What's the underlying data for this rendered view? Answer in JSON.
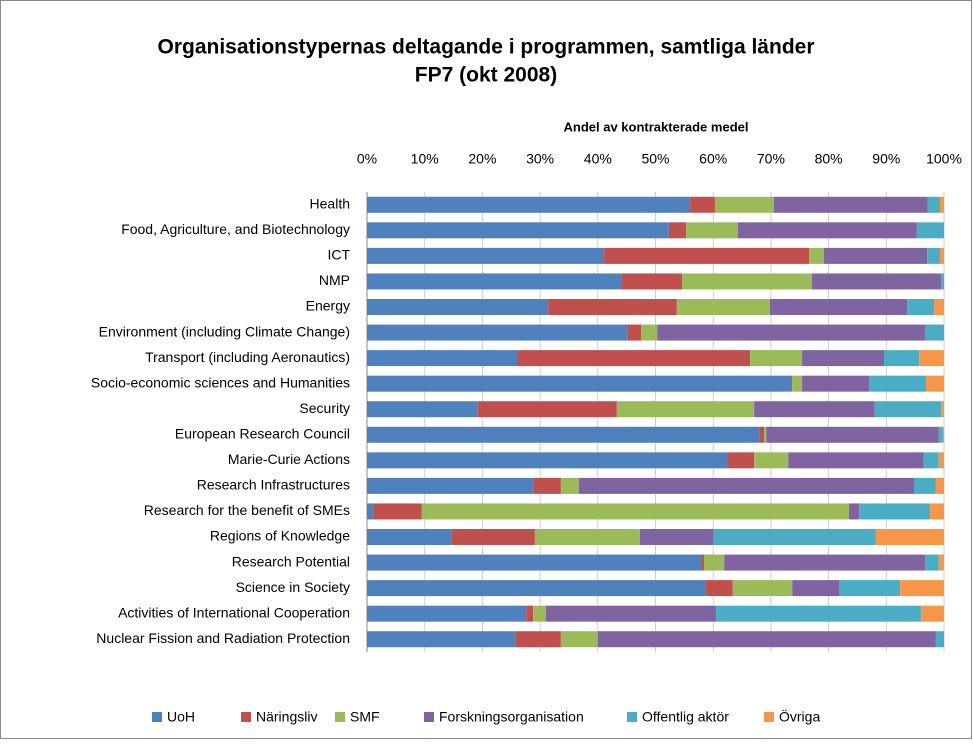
{
  "chart_data": {
    "type": "stacked-bar-horizontal",
    "title_lines": [
      "Organisationstypernas deltagande i programmen, samtliga länder",
      "FP7 (okt 2008)"
    ],
    "x_label": "Andel av kontrakterade medel",
    "categories": [
      "Health",
      "Food, Agriculture, and Biotechnology",
      "ICT",
      "NMP",
      "Energy",
      "Environment (including Climate Change)",
      "Transport (including Aeronautics)",
      "Socio-economic sciences and Humanities",
      "Security",
      "European Research Council",
      "Marie-Curie Actions",
      "Research Infrastructures",
      "Research for the benefit of SMEs",
      "Regions of Knowledge",
      "Research Potential",
      "Science in Society",
      "Activities of International Cooperation",
      "Nuclear Fission and Radiation Protection"
    ],
    "series": [
      {
        "name": "UoH",
        "color": "#4f81bd",
        "values": [
          56,
          52.3,
          41.1,
          44.2,
          31.4,
          45.2,
          26,
          73.5,
          19.2,
          68.1,
          62.4,
          28.8,
          1.2,
          14.6,
          57.9,
          58.6,
          27.6,
          25.8
        ]
      },
      {
        "name": "Näringsliv",
        "color": "#c0504d",
        "values": [
          4.3,
          3,
          35.5,
          10.4,
          22.3,
          2.3,
          40.4,
          0.2,
          24.1,
          0.7,
          4.7,
          4.8,
          8.3,
          14.5,
          0.5,
          4.8,
          1.2,
          7.8
        ]
      },
      {
        "name": "SMF",
        "color": "#9bbb59",
        "values": [
          10.2,
          9,
          2.6,
          22.5,
          16.1,
          2.8,
          9,
          1.7,
          23.8,
          0.4,
          5.9,
          3.1,
          74,
          18.2,
          3.5,
          10.3,
          2.2,
          6.4
        ]
      },
      {
        "name": "Forskningsorganisation",
        "color": "#8064a2",
        "values": [
          26.7,
          31,
          17.9,
          22.4,
          23.8,
          46.4,
          14.2,
          11.6,
          20.9,
          29.9,
          23.5,
          58.1,
          1.8,
          12.8,
          34.8,
          8.1,
          29.5,
          58.6
        ]
      },
      {
        "name": "Offentlig aktör",
        "color": "#4bacc6",
        "values": [
          2.1,
          4.7,
          2.2,
          0.5,
          4.7,
          3.3,
          6.1,
          9.9,
          11.5,
          0.7,
          2.6,
          3.8,
          12.3,
          28.1,
          2.4,
          10.6,
          35.5,
          1.4
        ]
      },
      {
        "name": "Övriga",
        "color": "#f79646",
        "values": [
          0.7,
          0,
          0.7,
          0,
          1.7,
          0,
          4.3,
          3.1,
          0.5,
          0.2,
          0.9,
          1.4,
          2.4,
          11.8,
          0.9,
          7.6,
          4,
          0
        ]
      }
    ],
    "xlim": [
      0,
      100
    ],
    "xticks": [
      {
        "value": 0,
        "label": "0%"
      },
      {
        "value": 10,
        "label": "10%"
      },
      {
        "value": 20,
        "label": "20%"
      },
      {
        "value": 30,
        "label": "30%"
      },
      {
        "value": 40,
        "label": "40%"
      },
      {
        "value": 50,
        "label": "50%"
      },
      {
        "value": 60,
        "label": "60%"
      },
      {
        "value": 70,
        "label": "70%"
      },
      {
        "value": 80,
        "label": "80%"
      },
      {
        "value": 90,
        "label": "90%"
      },
      {
        "value": 100,
        "label": "100%"
      }
    ],
    "grid": true,
    "legend": "bottom"
  }
}
